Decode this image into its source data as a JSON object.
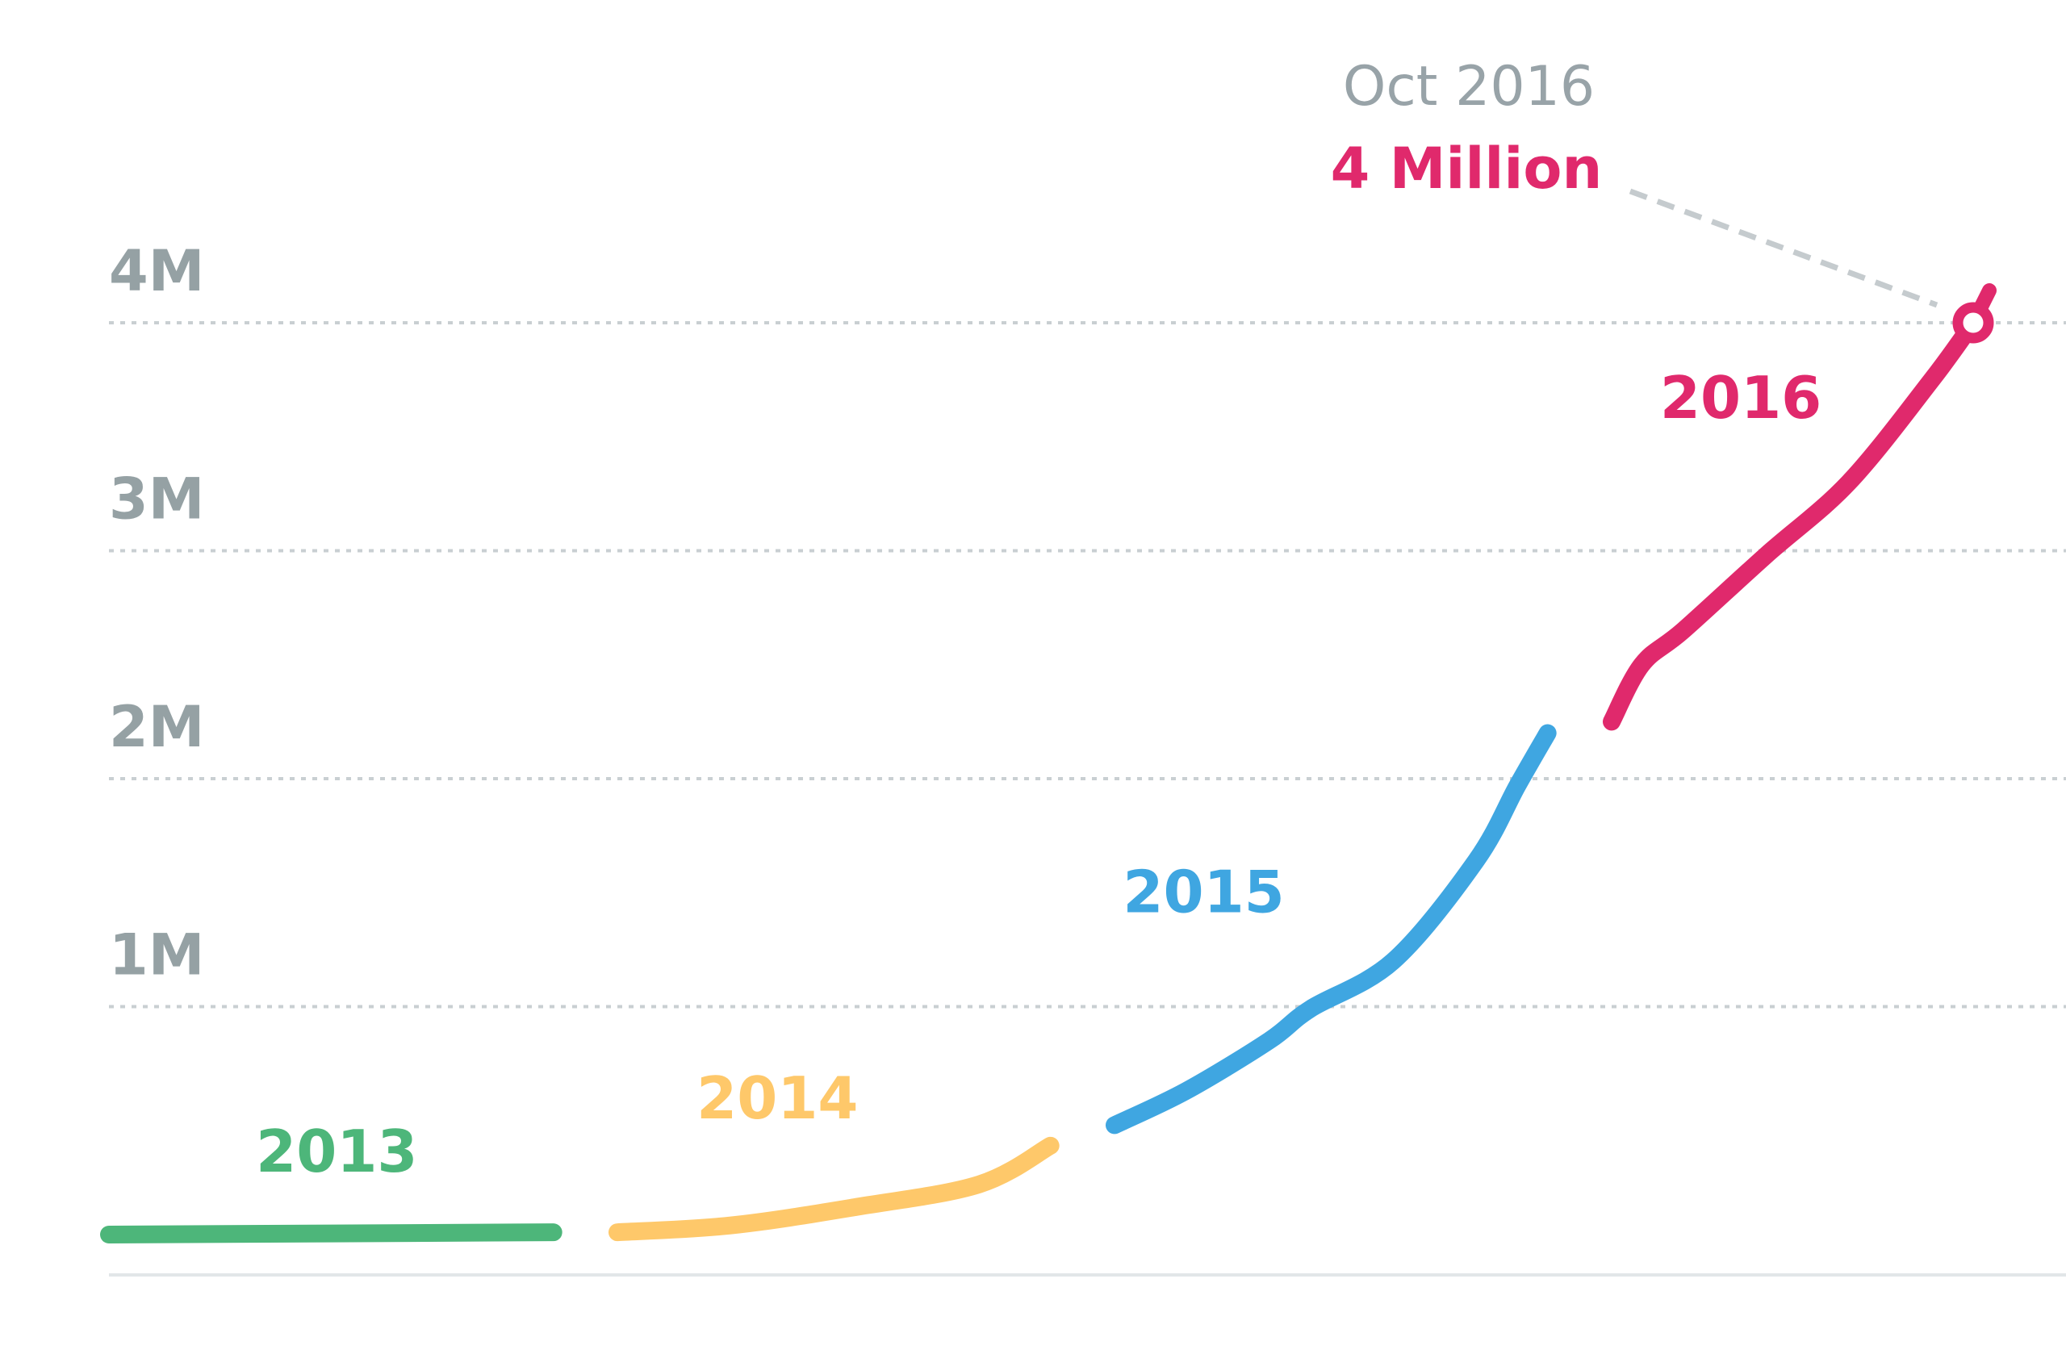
{
  "chart_data": {
    "type": "line",
    "title": "",
    "xlabel": "",
    "ylabel": "",
    "ylim": [
      0,
      4200000
    ],
    "grid": true,
    "y_ticks": [
      {
        "value": 1000000,
        "label": "1M"
      },
      {
        "value": 2000000,
        "label": "2M"
      },
      {
        "value": 3000000,
        "label": "3M"
      },
      {
        "value": 4000000,
        "label": "4M"
      }
    ],
    "series": [
      {
        "name": "2013",
        "color": "#4db67a",
        "points": [
          {
            "x": "2013-01",
            "y": 0
          },
          {
            "x": "2013-12",
            "y": 10000
          }
        ]
      },
      {
        "name": "2014",
        "color": "#fec86a",
        "points": [
          {
            "x": "2014-01",
            "y": 10000
          },
          {
            "x": "2014-04",
            "y": 40000
          },
          {
            "x": "2014-07",
            "y": 120000
          },
          {
            "x": "2014-10",
            "y": 220000
          },
          {
            "x": "2014-12",
            "y": 390000
          }
        ]
      },
      {
        "name": "2015",
        "color": "#3fa6e1",
        "points": [
          {
            "x": "2015-01",
            "y": 480000
          },
          {
            "x": "2015-03",
            "y": 630000
          },
          {
            "x": "2015-05",
            "y": 850000
          },
          {
            "x": "2015-06",
            "y": 990000
          },
          {
            "x": "2015-08",
            "y": 1200000
          },
          {
            "x": "2015-10",
            "y": 1640000
          },
          {
            "x": "2015-11",
            "y": 1970000
          },
          {
            "x": "2015-12",
            "y": 2200000
          }
        ]
      },
      {
        "name": "2016",
        "color": "#e0296c",
        "points": [
          {
            "x": "2016-01",
            "y": 2250000
          },
          {
            "x": "2016-02",
            "y": 2500000
          },
          {
            "x": "2016-03",
            "y": 2650000
          },
          {
            "x": "2016-05",
            "y": 2980000
          },
          {
            "x": "2016-07",
            "y": 3300000
          },
          {
            "x": "2016-09",
            "y": 3750000
          },
          {
            "x": "2016-10",
            "y": 4000000
          }
        ]
      }
    ],
    "annotation": {
      "date": "Oct 2016",
      "value_label": "4 Million",
      "value_color": "#e0296c",
      "x": "2016-10",
      "y": 4000000
    }
  }
}
